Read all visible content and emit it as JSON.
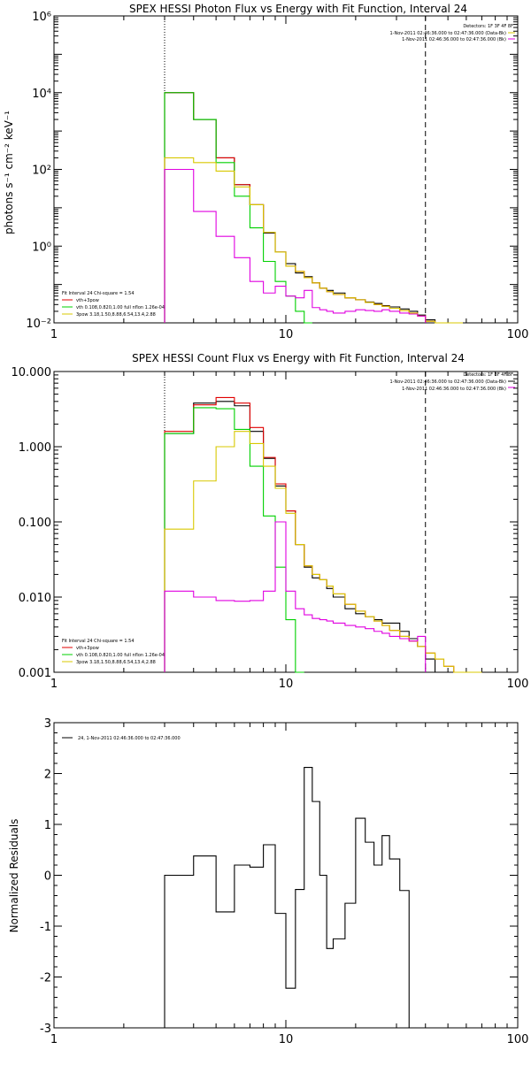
{
  "colors": {
    "observed": "#000000",
    "total_fit": "#e00000",
    "thermal": "#00d000",
    "powerlaw": "#d8c800",
    "background": "#e000e0"
  },
  "chart_data": [
    {
      "type": "line",
      "panel": "photon",
      "title": "SPEX HESSI Photon Flux vs Energy with Fit Function, Interval 24",
      "xlabel": "",
      "ylabel": "photons s⁻¹ cm⁻² keV⁻¹",
      "xscale": "log",
      "yscale": "log",
      "xlim": [
        1,
        100
      ],
      "ylim": [
        0.01,
        1000000
      ],
      "xticks": [
        1,
        10,
        100
      ],
      "xticklabels": [
        "1",
        "10",
        "100"
      ],
      "yticks": [
        0.01,
        1,
        100,
        10000,
        1000000
      ],
      "yticklabels": [
        "10⁻²",
        "10⁰",
        "10²",
        "10⁴",
        "10⁶"
      ],
      "vlines": [
        {
          "x": 3,
          "style": "dotted"
        },
        {
          "x": 40,
          "style": "dashed"
        }
      ],
      "legend_top": [
        "Detectors: 1F 3F 4F 8F",
        "1-Nov-2011 02:46:36.000 to 02:47:36.000 (Data-Bk)",
        "1-Nov-2011 02:46:36.000 to 02:47:36.000 (Bk)"
      ],
      "legend_top_colors": [
        "",
        "#d8c800",
        "#e000e0"
      ],
      "legend_bottom": [
        "Fit Interval 24  Chi-square = 1.54",
        "vth+3pow",
        "vth 0.108,0.820,1.00  full nflon 1.26e-04",
        "3pow 3.18,1.50,8.88,6.54,13.4,2.88"
      ],
      "legend_bottom_colors": [
        "",
        "#e00000",
        "#00d000",
        "#d8c800"
      ],
      "edges": [
        3,
        4,
        5,
        6,
        7,
        8,
        9,
        10,
        11,
        12,
        13,
        14,
        15,
        16,
        18,
        20,
        22,
        24,
        26,
        28,
        31,
        34,
        37,
        40,
        44,
        48,
        53,
        58
      ],
      "series": [
        {
          "name": "data",
          "color": "#000000",
          "values": [
            10000,
            2000,
            200,
            40,
            12,
            2.2,
            0.7,
            0.35,
            0.2,
            0.16,
            0.11,
            0.08,
            0.07,
            0.06,
            0.045,
            0.04,
            0.035,
            0.032,
            0.028,
            0.026,
            0.023,
            0.02,
            0.016,
            0.012
          ]
        },
        {
          "name": "vth+3pow",
          "color": "#e00000",
          "values": [
            10000,
            2000,
            200,
            40,
            12,
            2.3,
            0.7,
            0.3,
            0.22,
            0.15,
            0.11,
            0.08,
            0.065,
            0.055,
            0.045,
            0.04,
            0.034,
            0.03,
            0.027,
            0.024,
            0.021,
            0.018,
            0.015,
            0.011,
            0.009,
            0.008,
            0.007
          ]
        },
        {
          "name": "vth",
          "color": "#00d000",
          "values": [
            10000,
            2000,
            150,
            20,
            3,
            0.4,
            0.12,
            0.05,
            0.02,
            0.005
          ]
        },
        {
          "name": "3pow",
          "color": "#d8c800",
          "values": [
            200,
            150,
            90,
            35,
            12,
            2.3,
            0.7,
            0.3,
            0.22,
            0.15,
            0.11,
            0.08,
            0.065,
            0.055,
            0.045,
            0.04,
            0.034,
            0.03,
            0.027,
            0.024,
            0.021,
            0.018,
            0.015,
            0.011,
            0.009,
            0.008,
            0.007
          ]
        },
        {
          "name": "background",
          "color": "#e000e0",
          "values": [
            100,
            8,
            1.8,
            0.5,
            0.12,
            0.06,
            0.09,
            0.05,
            0.045,
            0.07,
            0.025,
            0.022,
            0.02,
            0.018,
            0.02,
            0.022,
            0.021,
            0.02,
            0.022,
            0.02,
            0.018,
            0.017,
            0.015
          ]
        }
      ]
    },
    {
      "type": "line",
      "panel": "count",
      "title": "SPEX HESSI Count Flux vs Energy with Fit Function, Interval 24",
      "xlabel": "",
      "ylabel": "",
      "xscale": "log",
      "yscale": "log",
      "xlim": [
        1,
        100
      ],
      "ylim": [
        0.001,
        10
      ],
      "xticks": [
        1,
        10,
        100
      ],
      "xticklabels": [
        "1",
        "10",
        "100"
      ],
      "yticks": [
        0.001,
        0.01,
        0.1,
        1,
        10
      ],
      "yticklabels": [
        "0.001",
        "0.010",
        "0.100",
        "1.000",
        "10.000"
      ],
      "vlines": [
        {
          "x": 3,
          "style": "dotted"
        },
        {
          "x": 40,
          "style": "dashed"
        }
      ],
      "legend_top": [
        "Detectors: 1F 3F 4F 8F",
        "1-Nov-2011 02:46:36.000 to 02:47:36.000 (Data-Bk)",
        "1-Nov-2011 02:46:36.000 to 02:47:36.000 (Bk)"
      ],
      "legend_top_colors": [
        "",
        "#000000",
        "#e000e0"
      ],
      "legend_bottom": [
        "Fit Interval 24  Chi-square = 1.54",
        "vth+3pow",
        "vth 0.108,0.820,1.00  full nflon 1.26e-04",
        "3pow 3.18,1.50,8.88,6.54,13.4,2.88"
      ],
      "legend_bottom_colors": [
        "",
        "#e00000",
        "#00d000",
        "#d8c800"
      ],
      "edges": [
        3,
        4,
        5,
        6,
        7,
        8,
        9,
        10,
        11,
        12,
        13,
        14,
        15,
        16,
        18,
        20,
        22,
        24,
        26,
        28,
        31,
        34,
        37,
        40,
        44,
        48,
        53,
        58,
        64,
        70
      ],
      "series": [
        {
          "name": "data",
          "color": "#000000",
          "values": [
            1.5,
            3.8,
            4.0,
            3.5,
            1.6,
            0.7,
            0.3,
            0.14,
            0.05,
            0.025,
            0.018,
            0.017,
            0.013,
            0.01,
            0.007,
            0.006,
            0.0055,
            0.005,
            0.0045,
            0.0045,
            0.0035,
            0.0028,
            0.0022,
            0.0015
          ]
        },
        {
          "name": "vth+3pow",
          "color": "#e00000",
          "values": [
            1.6,
            3.6,
            4.5,
            3.8,
            1.8,
            0.72,
            0.32,
            0.14,
            0.05,
            0.026,
            0.02,
            0.017,
            0.014,
            0.011,
            0.008,
            0.0065,
            0.0055,
            0.0048,
            0.0042,
            0.0036,
            0.003,
            0.0026,
            0.0022,
            0.0018,
            0.0015,
            0.0012,
            0.001,
            0.0009,
            0.0008
          ]
        },
        {
          "name": "vth",
          "color": "#00d000",
          "values": [
            1.5,
            3.3,
            3.2,
            1.7,
            0.55,
            0.12,
            0.025,
            0.005,
            0.0008
          ]
        },
        {
          "name": "3pow",
          "color": "#d8c800",
          "values": [
            0.08,
            0.35,
            1.0,
            1.6,
            1.1,
            0.55,
            0.28,
            0.13,
            0.05,
            0.026,
            0.02,
            0.017,
            0.014,
            0.011,
            0.008,
            0.0065,
            0.0055,
            0.0048,
            0.0042,
            0.0036,
            0.003,
            0.0026,
            0.0022,
            0.0018,
            0.0015,
            0.0012,
            0.001,
            0.0009,
            0.0008
          ]
        },
        {
          "name": "background",
          "color": "#e000e0",
          "values": [
            0.012,
            0.01,
            0.009,
            0.0088,
            0.009,
            0.012,
            0.1,
            0.012,
            0.007,
            0.0058,
            0.0052,
            0.005,
            0.0048,
            0.0045,
            0.0042,
            0.004,
            0.0038,
            0.0035,
            0.0033,
            0.003,
            0.0028,
            0.0026,
            0.003
          ]
        }
      ]
    },
    {
      "type": "line",
      "panel": "residuals",
      "title": "",
      "xlabel": "",
      "ylabel": "Normalized Residuals",
      "xscale": "log",
      "yscale": "linear",
      "xlim": [
        1,
        100
      ],
      "ylim": [
        -3,
        3
      ],
      "xticks": [
        1,
        10,
        100
      ],
      "xticklabels": [
        "1",
        "10",
        "100"
      ],
      "yticks": [
        -3,
        -2,
        -1,
        0,
        1,
        2,
        3
      ],
      "yticklabels": [
        "-3",
        "-2",
        "-1",
        "0",
        "1",
        "2",
        "3"
      ],
      "legend": "24,  1-Nov-2011 02:46:36.000 to 02:47:36.000",
      "edges": [
        3,
        4,
        5,
        6,
        7,
        8,
        9,
        10,
        11,
        12,
        13,
        14,
        15,
        16,
        18,
        20,
        22,
        24,
        26,
        28,
        31,
        34,
        37,
        40
      ],
      "series": [
        {
          "name": "residuals",
          "color": "#000000",
          "values": [
            0.0,
            0.38,
            -0.72,
            0.2,
            0.16,
            0.6,
            -0.75,
            -2.22,
            -0.28,
            2.12,
            1.45,
            0.0,
            -1.44,
            -1.25,
            -0.55,
            1.12,
            0.65,
            0.2,
            0.78,
            0.32,
            -0.3
          ]
        }
      ]
    }
  ]
}
